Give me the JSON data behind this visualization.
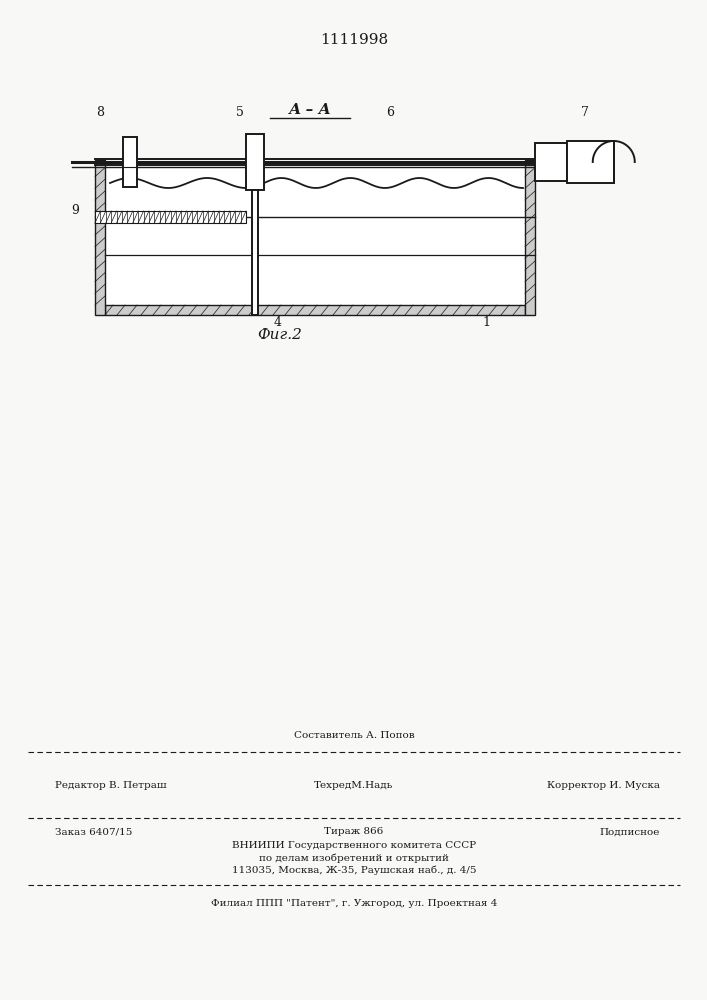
{
  "patent_number": "1111998",
  "section_label": "А – А",
  "fig_label": "Фиг.2",
  "bg_color": "#f8f8f6",
  "line_color": "#1a1a1a",
  "footer_line1_left": "Редактор В. Петраш",
  "footer_line1_center": "ТехредМ.Надь",
  "footer_line1_center_top": "Составитель А. Попов",
  "footer_line1_right": "Корректор И. Муска",
  "footer_line2_left": "Заказ 6407/15",
  "footer_line2_center": "Тираж 866",
  "footer_line2_right": "Подписное",
  "footer_line3": "ВНИИПИ Государственного комитета СССР",
  "footer_line4": "по делам изобретений и открытий",
  "footer_line5": "113035, Москва, Ж-35, Раушская наб., д. 4/5",
  "footer_line6": "Филиал ППП \"Патент\", г. Ужгород, ул. Проектная 4"
}
